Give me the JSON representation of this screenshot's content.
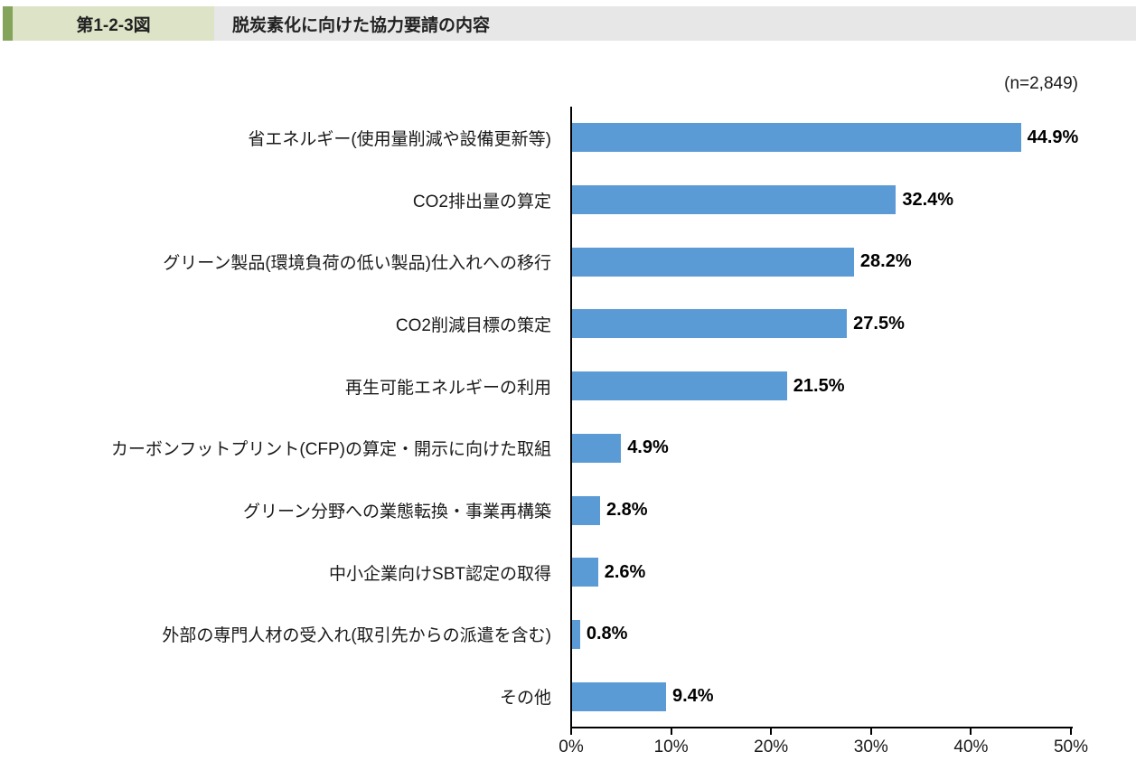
{
  "header": {
    "figure_label": "第1-2-3図",
    "title": "脱炭素化に向けた協力要請の内容"
  },
  "note": "(n=2,849)",
  "colors": {
    "accent_green": "#84a45c",
    "label_bg_green": "#dce3c7",
    "title_bg_gray": "#e7e7e8",
    "bar_blue": "#5b9bd5",
    "axis_black": "#000000"
  },
  "chart_data": {
    "type": "bar",
    "orientation": "horizontal",
    "title": "脱炭素化に向けた協力要請の内容",
    "sample_note": "(n=2,849)",
    "categories": [
      "省エネルギー(使用量削減や設備更新等)",
      "CO2排出量の算定",
      "グリーン製品(環境負荷の低い製品)仕入れへの移行",
      "CO2削減目標の策定",
      "再生可能エネルギーの利用",
      "カーボンフットプリント(CFP)の算定・開示に向けた取組",
      "グリーン分野への業態転換・事業再構築",
      "中小企業向けSBT認定の取得",
      "外部の専門人材の受入れ(取引先からの派遣を含む)",
      "その他"
    ],
    "values": [
      44.9,
      32.4,
      28.2,
      27.5,
      21.5,
      4.9,
      2.8,
      2.6,
      0.8,
      9.4
    ],
    "value_labels": [
      "44.9%",
      "32.4%",
      "28.2%",
      "27.5%",
      "21.5%",
      "4.9%",
      "2.8%",
      "2.6%",
      "0.8%",
      "9.4%"
    ],
    "xlabel": "",
    "ylabel": "",
    "xlim": [
      0,
      50
    ],
    "x_tick_labels": [
      "0%",
      "10%",
      "20%",
      "30%",
      "40%",
      "50%"
    ],
    "grid": false,
    "legend": false
  }
}
